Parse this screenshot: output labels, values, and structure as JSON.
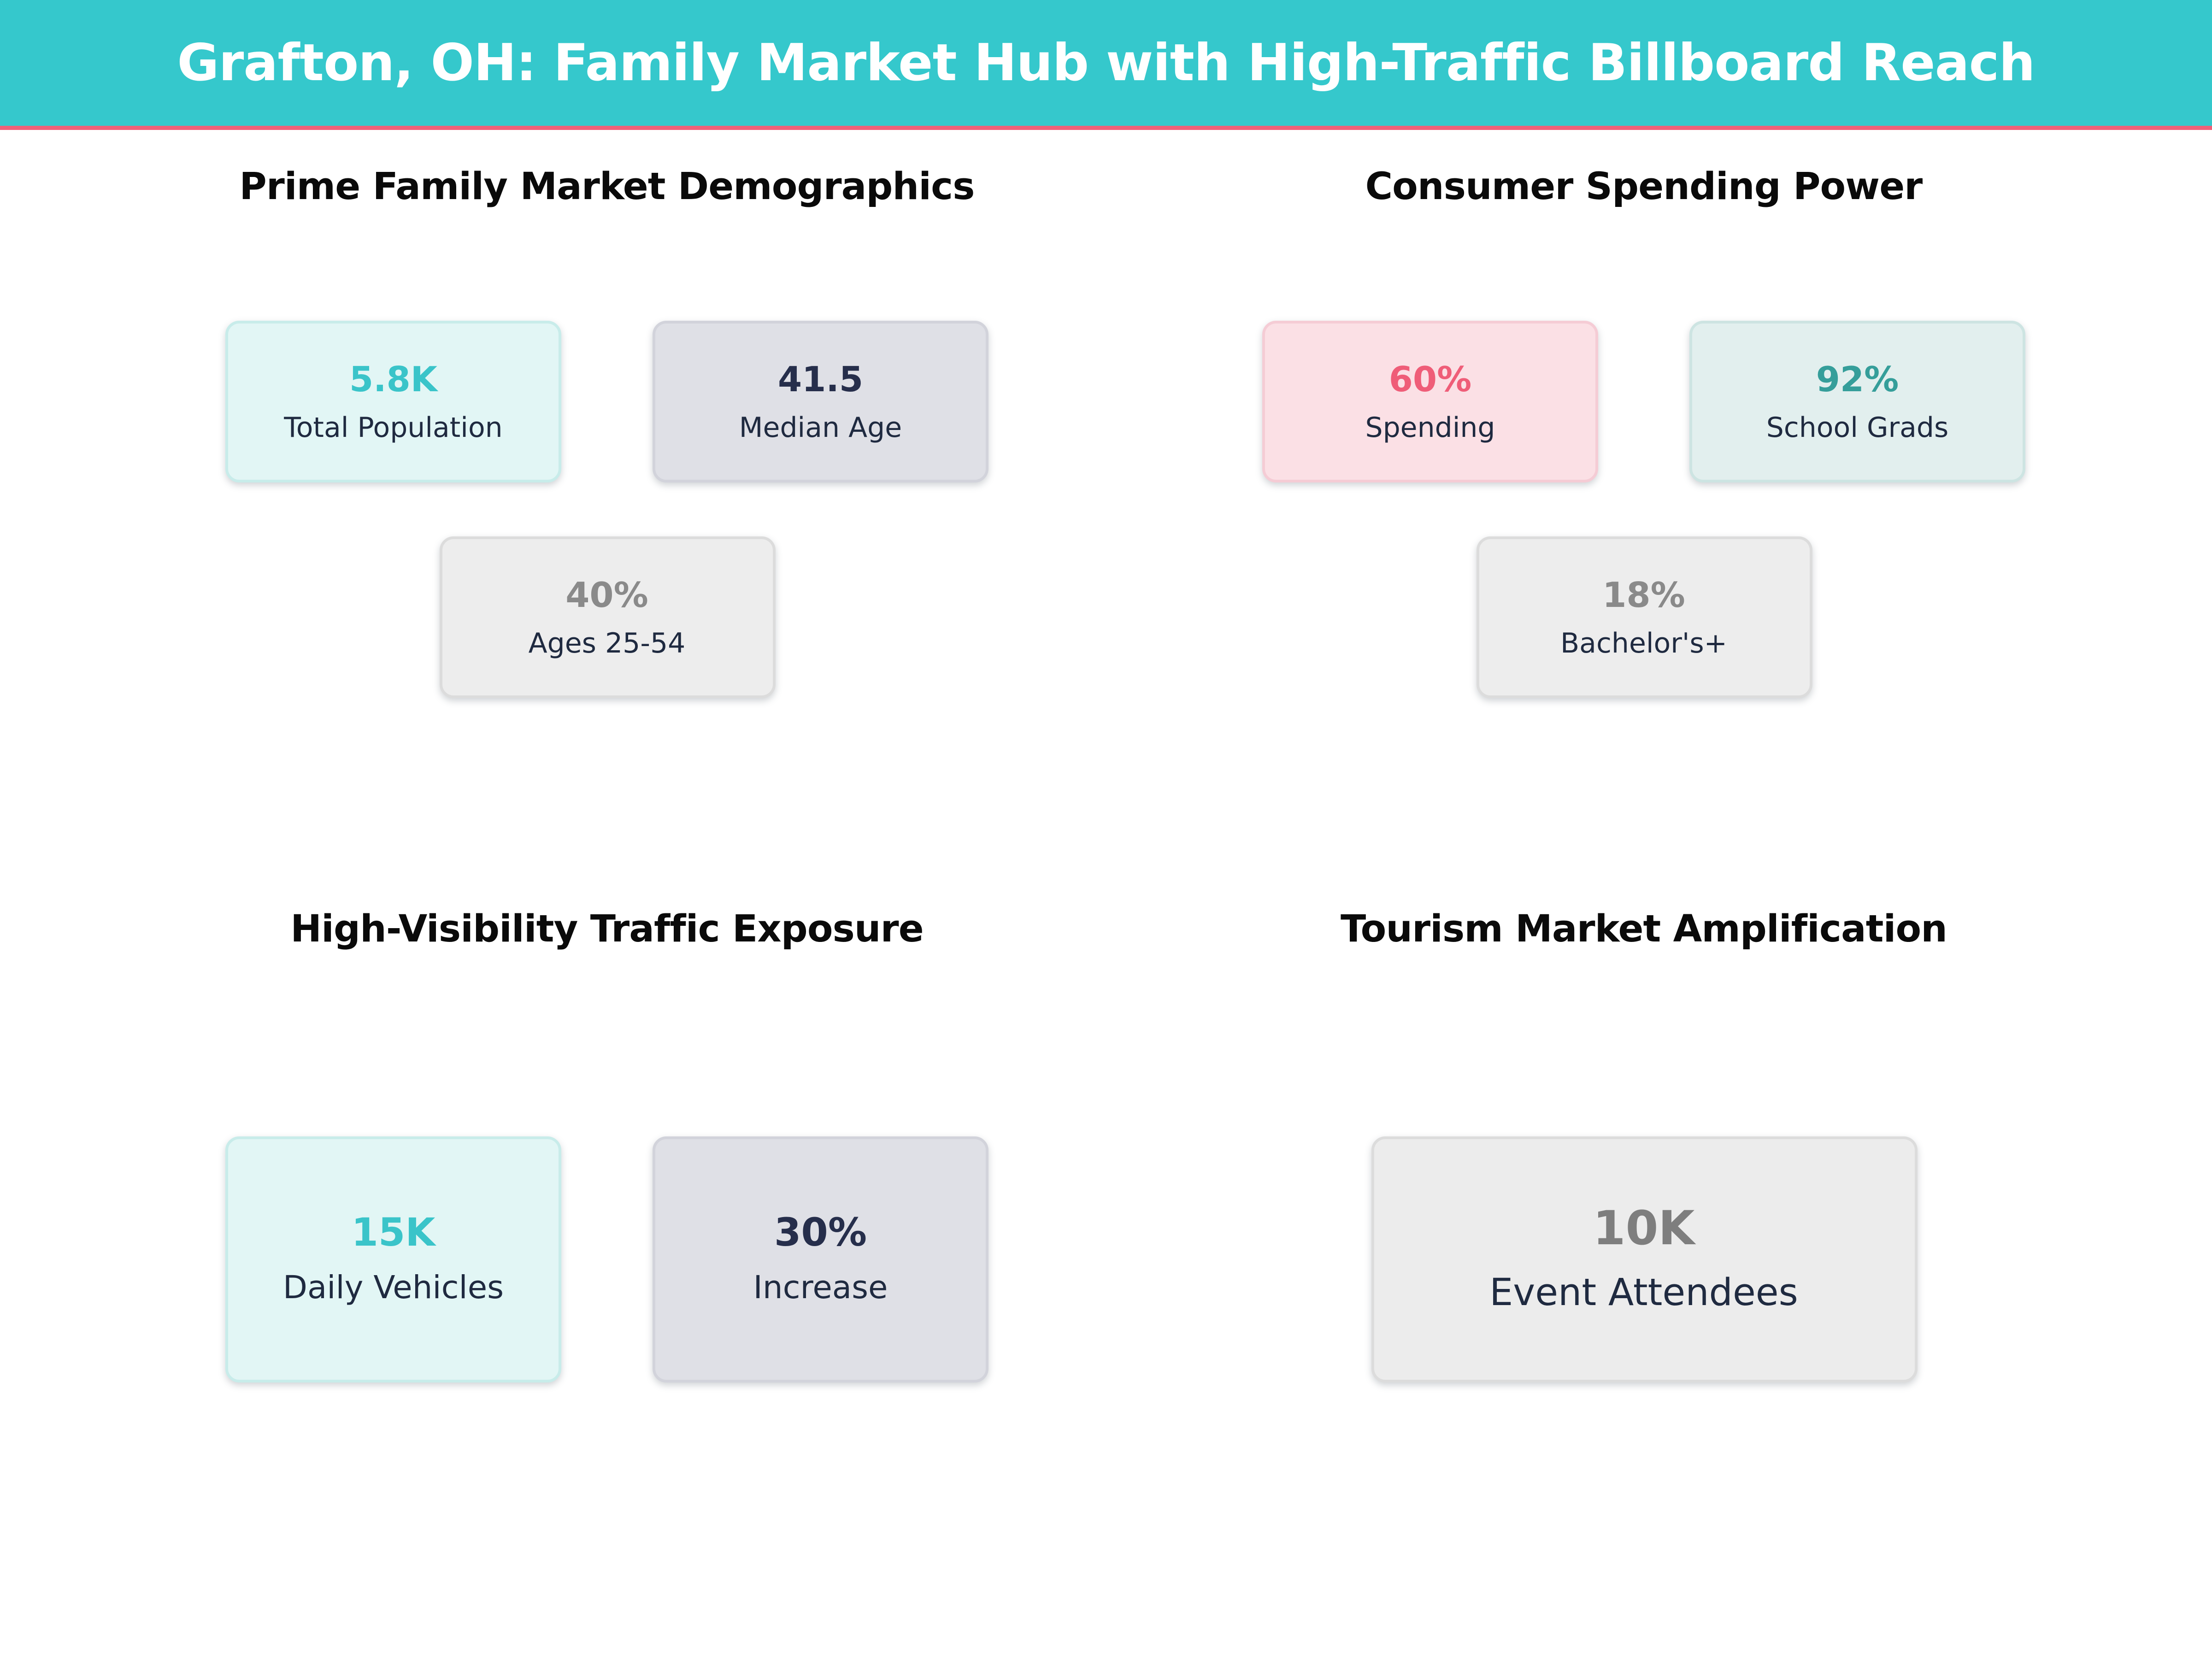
{
  "palette": {
    "header_bg": "#35c8cc",
    "header_accent_line": "#ef6078",
    "header_title_color": "#ffffff",
    "section_title_color": "#0a0a0a",
    "stat_label_color": "#1f2a40",
    "themes": {
      "teal": {
        "bg": "#e2f6f5",
        "border": "#c8ecea",
        "value": "#3ac4c9"
      },
      "slate": {
        "bg": "#dfe0e6",
        "border": "#d2d3db",
        "value": "#262e4b"
      },
      "gray": {
        "bg": "#ededed",
        "border": "#dcdcdc",
        "value": "#8a8a8a"
      },
      "gray_dark": {
        "bg": "#ececec",
        "border": "#dcdcdc",
        "value": "#7e7e7e"
      },
      "pink": {
        "bg": "#fbe0e5",
        "border": "#f5ccd5",
        "value": "#ef5d78"
      },
      "teal_muted": {
        "bg": "#e2efee",
        "border": "#cde4e2",
        "value": "#359e9a"
      }
    }
  },
  "chart_data": {
    "type": "table",
    "title": "Grafton, OH: Family Market Hub with High-Traffic Billboard Reach",
    "layout": "2x2 grid of KPI card groups, white background, teal banner header",
    "groups": [
      {
        "section": "Prime Family Market Demographics",
        "stats": [
          {
            "label": "Total Population",
            "value": "5.8K",
            "theme": "teal"
          },
          {
            "label": "Median Age",
            "value": "41.5",
            "theme": "slate"
          },
          {
            "label": "Ages 25-54",
            "value": "40%",
            "theme": "gray"
          }
        ]
      },
      {
        "section": "Consumer Spending Power",
        "stats": [
          {
            "label": "Spending",
            "value": "60%",
            "theme": "pink"
          },
          {
            "label": "School Grads",
            "value": "92%",
            "theme": "teal_muted"
          },
          {
            "label": "Bachelor's+",
            "value": "18%",
            "theme": "gray"
          }
        ]
      },
      {
        "section": "High-Visibility Traffic Exposure",
        "stats": [
          {
            "label": "Daily Vehicles",
            "value": "15K",
            "theme": "teal"
          },
          {
            "label": "Increase",
            "value": "30%",
            "theme": "slate"
          }
        ]
      },
      {
        "section": "Tourism Market Amplification",
        "stats": [
          {
            "label": "Event Attendees",
            "value": "10K",
            "theme": "gray_dark"
          }
        ]
      }
    ]
  }
}
